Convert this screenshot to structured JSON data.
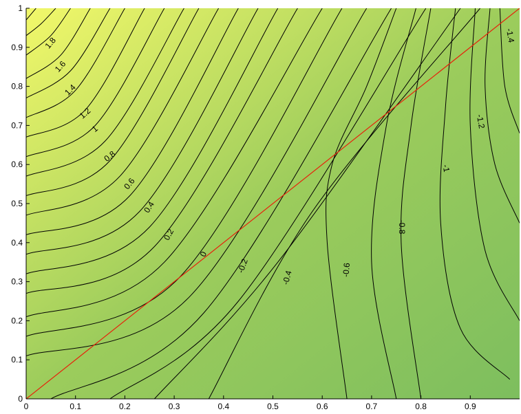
{
  "chart_data": {
    "type": "contour",
    "title": "",
    "xlabel": "",
    "ylabel": "",
    "xlim": [
      0,
      1
    ],
    "ylim": [
      0,
      1
    ],
    "grid": false,
    "x_ticks": [
      "0",
      "0.1",
      "0.2",
      "0.3",
      "0.4",
      "0.5",
      "0.6",
      "0.7",
      "0.8",
      "0.9"
    ],
    "y_ticks": [
      "0",
      "0.1",
      "0.2",
      "0.3",
      "0.4",
      "0.5",
      "0.6",
      "0.7",
      "0.8",
      "0.9",
      "1"
    ],
    "colormap": {
      "low": "#7dbe5e",
      "mid": "#9ccc5c",
      "high": "#f2f86a"
    },
    "contour_line_color": "#000000",
    "reference_line": {
      "x": [
        0,
        1
      ],
      "y": [
        0,
        1
      ],
      "color": "#e8200a"
    },
    "contour_labels": [
      {
        "text": "1.8",
        "x": 0.05,
        "y": 0.91,
        "angle": -50
      },
      {
        "text": "1.6",
        "x": 0.07,
        "y": 0.85,
        "angle": -48
      },
      {
        "text": "1.4",
        "x": 0.09,
        "y": 0.79,
        "angle": -45
      },
      {
        "text": "1.2",
        "x": 0.12,
        "y": 0.73,
        "angle": -42
      },
      {
        "text": "1",
        "x": 0.14,
        "y": 0.69,
        "angle": -40
      },
      {
        "text": "0.8",
        "x": 0.17,
        "y": 0.62,
        "angle": -38
      },
      {
        "text": "0.6",
        "x": 0.21,
        "y": 0.55,
        "angle": -52
      },
      {
        "text": "0.4",
        "x": 0.25,
        "y": 0.49,
        "angle": -58
      },
      {
        "text": "0.2",
        "x": 0.29,
        "y": 0.42,
        "angle": -62
      },
      {
        "text": "0",
        "x": 0.36,
        "y": 0.37,
        "angle": -65
      },
      {
        "text": "-0.2",
        "x": 0.44,
        "y": 0.34,
        "angle": -70
      },
      {
        "text": "-0.4",
        "x": 0.53,
        "y": 0.31,
        "angle": -75
      },
      {
        "text": "-0.6",
        "x": 0.65,
        "y": 0.33,
        "angle": -85
      },
      {
        "text": "-0.8",
        "x": 0.76,
        "y": 0.44,
        "angle": 90
      },
      {
        "text": "-1",
        "x": 0.85,
        "y": 0.59,
        "angle": 80
      },
      {
        "text": "-1.2",
        "x": 0.92,
        "y": 0.71,
        "angle": 80
      },
      {
        "text": "-1.4",
        "x": 0.98,
        "y": 0.93,
        "angle": 80
      }
    ],
    "contour_lines": [
      {
        "level": 1.9,
        "points": [
          [
            0,
            0.97
          ],
          [
            0.02,
            1
          ]
        ]
      },
      {
        "level": 1.8,
        "points": [
          [
            0,
            0.93
          ],
          [
            0.03,
            0.96
          ],
          [
            0.06,
            1
          ]
        ]
      },
      {
        "level": 1.7,
        "points": [
          [
            0,
            0.88
          ],
          [
            0.05,
            0.93
          ],
          [
            0.09,
            1
          ]
        ]
      },
      {
        "level": 1.6,
        "points": [
          [
            0,
            0.82
          ],
          [
            0.07,
            0.88
          ],
          [
            0.13,
            1
          ]
        ]
      },
      {
        "level": 1.5,
        "points": [
          [
            0,
            0.77
          ],
          [
            0.09,
            0.84
          ],
          [
            0.17,
            1
          ]
        ]
      },
      {
        "level": 1.4,
        "points": [
          [
            0,
            0.72
          ],
          [
            0.1,
            0.79
          ],
          [
            0.2,
            1
          ]
        ]
      },
      {
        "level": 1.3,
        "points": [
          [
            0,
            0.67
          ],
          [
            0.12,
            0.74
          ],
          [
            0.24,
            1
          ]
        ]
      },
      {
        "level": 1.2,
        "points": [
          [
            0,
            0.62
          ],
          [
            0.14,
            0.7
          ],
          [
            0.28,
            1
          ]
        ]
      },
      {
        "level": 1.1,
        "points": [
          [
            0,
            0.57
          ],
          [
            0.16,
            0.66
          ],
          [
            0.32,
            1
          ]
        ]
      },
      {
        "level": 1.0,
        "points": [
          [
            0,
            0.52
          ],
          [
            0.17,
            0.61
          ],
          [
            0.35,
            1
          ]
        ]
      },
      {
        "level": 0.9,
        "points": [
          [
            0,
            0.47
          ],
          [
            0.19,
            0.57
          ],
          [
            0.39,
            1
          ]
        ]
      },
      {
        "level": 0.8,
        "points": [
          [
            0,
            0.42
          ],
          [
            0.21,
            0.52
          ],
          [
            0.43,
            1
          ]
        ]
      },
      {
        "level": 0.7,
        "points": [
          [
            0,
            0.37
          ],
          [
            0.23,
            0.48
          ],
          [
            0.47,
            1
          ]
        ]
      },
      {
        "level": 0.6,
        "points": [
          [
            0,
            0.32
          ],
          [
            0.25,
            0.44
          ],
          [
            0.51,
            1
          ]
        ]
      },
      {
        "level": 0.5,
        "points": [
          [
            0,
            0.27
          ],
          [
            0.26,
            0.39
          ],
          [
            0.55,
            1
          ]
        ]
      },
      {
        "level": 0.4,
        "points": [
          [
            0,
            0.21
          ],
          [
            0.28,
            0.35
          ],
          [
            0.6,
            1
          ]
        ]
      },
      {
        "level": 0.3,
        "points": [
          [
            0,
            0.16
          ],
          [
            0.31,
            0.31
          ],
          [
            0.64,
            1
          ]
        ]
      },
      {
        "level": 0.2,
        "points": [
          [
            0,
            0.11
          ],
          [
            0.33,
            0.26
          ],
          [
            0.69,
            1
          ]
        ]
      },
      {
        "level": 0.1,
        "points": [
          [
            0.05,
            0
          ],
          [
            0.36,
            0.22
          ],
          [
            0.74,
            1
          ]
        ]
      },
      {
        "level": 0.0,
        "points": [
          [
            0.17,
            0
          ],
          [
            0.43,
            0.25
          ],
          [
            0.81,
            1
          ]
        ]
      },
      {
        "level": -0.2,
        "points": [
          [
            0.26,
            0
          ],
          [
            0.51,
            0.35
          ],
          [
            0.88,
            1
          ]
        ]
      },
      {
        "level": -0.3,
        "points": [
          [
            0.37,
            0
          ],
          [
            0.58,
            0.48
          ],
          [
            0.92,
            1
          ]
        ]
      },
      {
        "level": -0.4,
        "points": [
          [
            0.65,
            0
          ],
          [
            0.61,
            0.4
          ],
          [
            0.62,
            0.6
          ],
          [
            0.69,
            0.8
          ],
          [
            0.75,
            1
          ]
        ]
      },
      {
        "level": -0.6,
        "points": [
          [
            0.75,
            0
          ],
          [
            0.7,
            0.35
          ],
          [
            0.73,
            0.7
          ],
          [
            0.79,
            1
          ]
        ]
      },
      {
        "level": -0.8,
        "points": [
          [
            0.8,
            0
          ],
          [
            0.76,
            0.4
          ],
          [
            0.78,
            0.7
          ],
          [
            0.82,
            1
          ]
        ]
      },
      {
        "level": -1.0,
        "points": [
          [
            0.98,
            0.05
          ],
          [
            0.88,
            0.18
          ],
          [
            0.84,
            0.45
          ],
          [
            0.85,
            0.75
          ],
          [
            0.87,
            1
          ]
        ]
      },
      {
        "level": -1.1,
        "points": [
          [
            1,
            0.2
          ],
          [
            0.93,
            0.38
          ],
          [
            0.9,
            0.7
          ],
          [
            0.91,
            1
          ]
        ]
      },
      {
        "level": -1.2,
        "points": [
          [
            1,
            0.45
          ],
          [
            0.95,
            0.6
          ],
          [
            0.93,
            0.8
          ],
          [
            0.94,
            1
          ]
        ]
      },
      {
        "level": -1.4,
        "points": [
          [
            1,
            0.68
          ],
          [
            0.97,
            0.8
          ],
          [
            0.96,
            1
          ]
        ]
      }
    ]
  }
}
